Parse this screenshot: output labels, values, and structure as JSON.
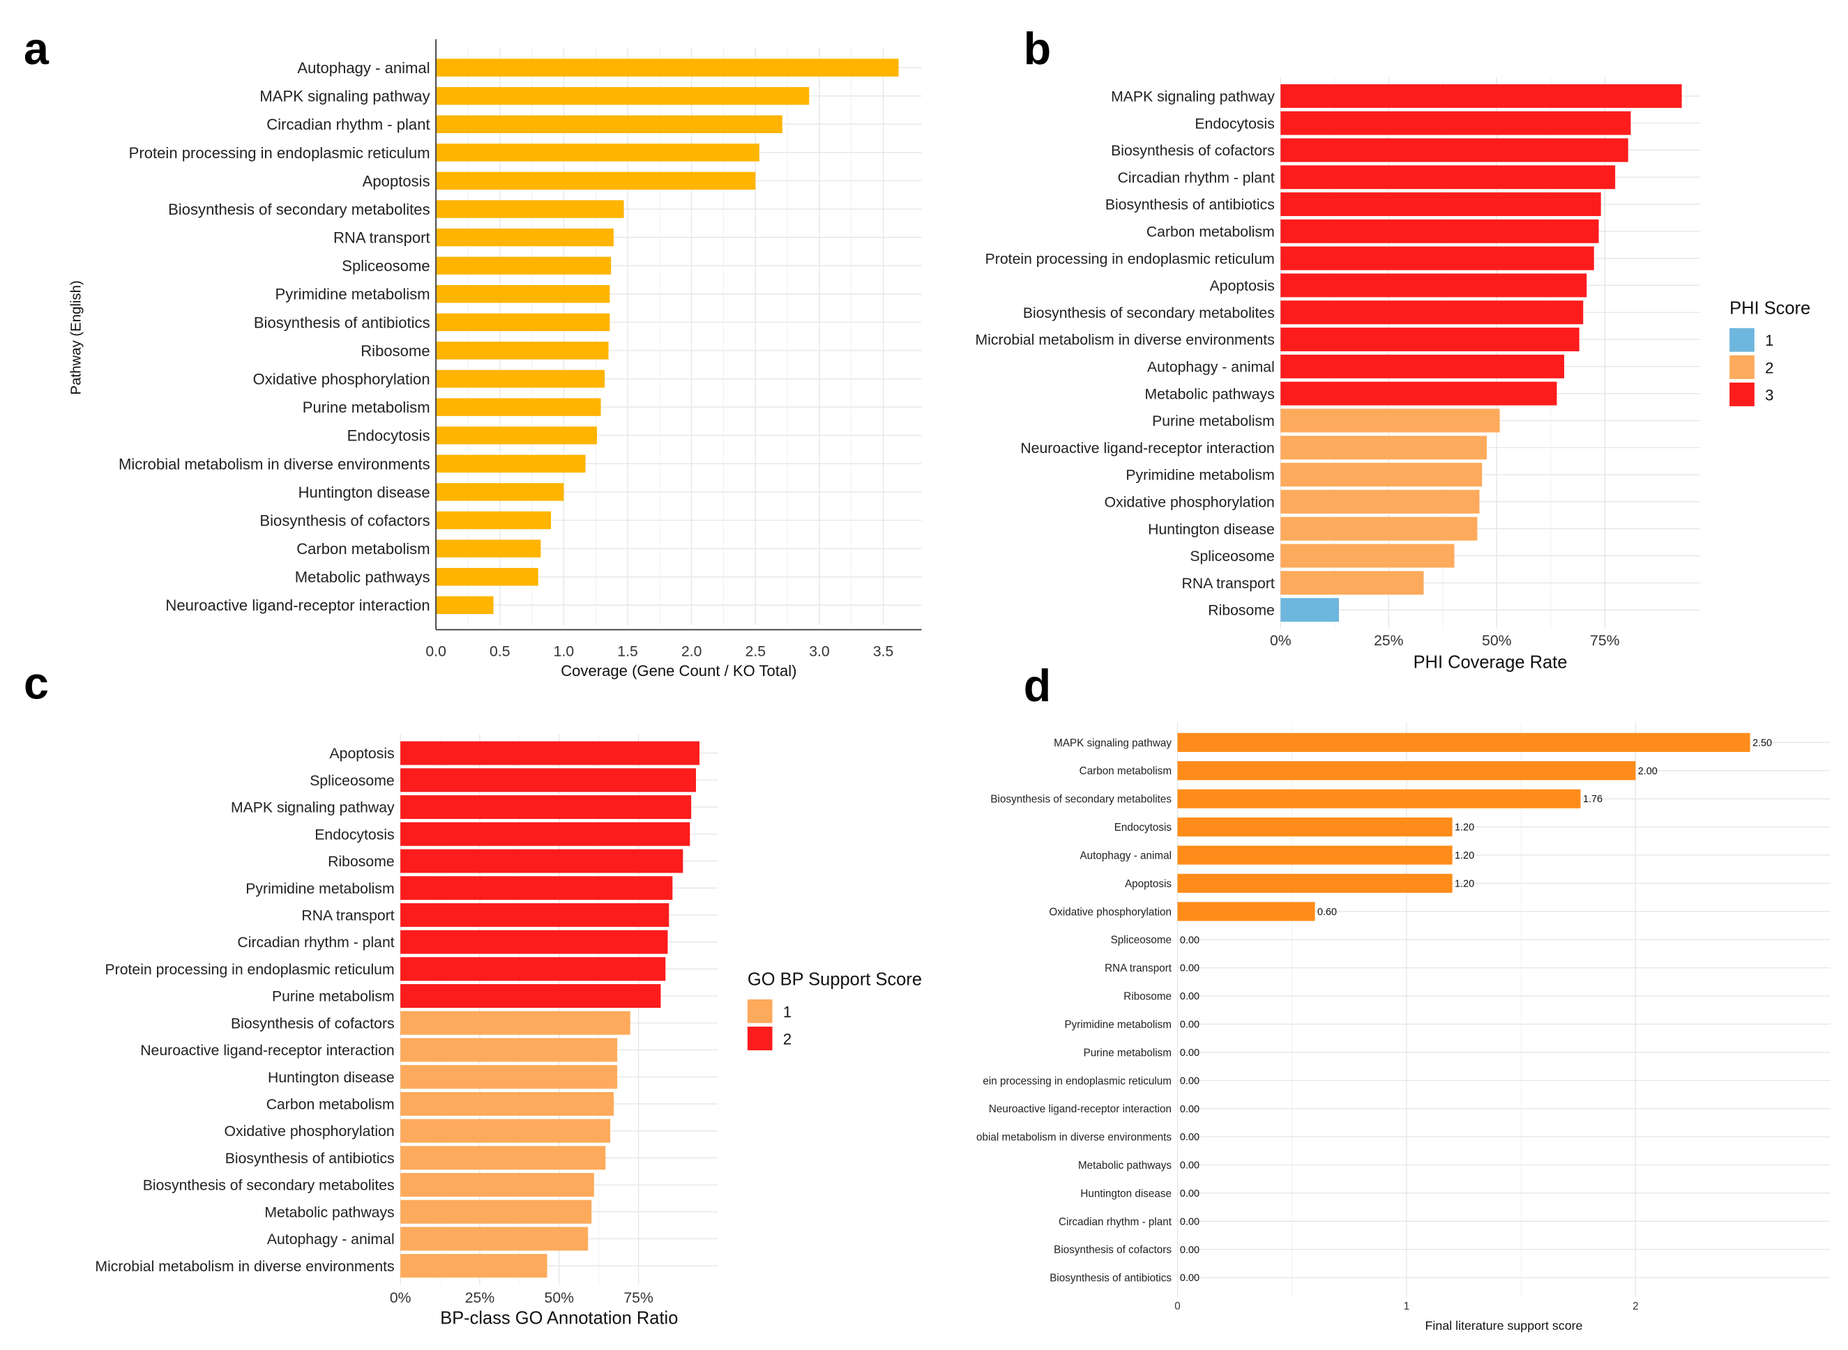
{
  "panel_letters": [
    "a",
    "b",
    "c",
    "d"
  ],
  "chart_data": [
    {
      "panel": "a",
      "type": "bar",
      "orientation": "horizontal",
      "xlabel": "Coverage (Gene Count / KO Total)",
      "ylabel": "Pathway (English)",
      "xlim": [
        0,
        3.8
      ],
      "xticks": [
        0,
        0.5,
        1,
        1.5,
        2,
        2.5,
        3,
        3.5
      ],
      "xtick_labels": [
        "0.0",
        "0.5",
        "1.0",
        "1.5",
        "2.0",
        "2.5",
        "3.0",
        "3.5"
      ],
      "bar_color": "#ffb400",
      "grid": true,
      "categories": [
        "Autophagy - animal",
        "MAPK signaling pathway",
        "Circadian rhythm - plant",
        "Protein processing in endoplasmic reticulum",
        "Apoptosis",
        "Biosynthesis of secondary metabolites",
        "RNA transport",
        "Spliceosome",
        "Pyrimidine metabolism",
        "Biosynthesis of antibiotics",
        "Ribosome",
        "Oxidative phosphorylation",
        "Purine metabolism",
        "Endocytosis",
        "Microbial metabolism in diverse environments",
        "Huntington disease",
        "Biosynthesis of cofactors",
        "Carbon metabolism",
        "Metabolic pathways",
        "Neuroactive ligand-receptor interaction"
      ],
      "values": [
        3.62,
        2.92,
        2.71,
        2.53,
        2.5,
        1.47,
        1.39,
        1.37,
        1.36,
        1.36,
        1.35,
        1.32,
        1.29,
        1.26,
        1.17,
        1.0,
        0.9,
        0.82,
        0.8,
        0.45
      ]
    },
    {
      "panel": "b",
      "type": "bar",
      "orientation": "horizontal",
      "xlabel": "PHI Coverage Rate",
      "xlim": [
        0,
        97
      ],
      "xticks": [
        0,
        25,
        50,
        75
      ],
      "xtick_labels": [
        "0%",
        "25%",
        "50%",
        "75%"
      ],
      "grid": true,
      "legend": {
        "title": "PHI Score",
        "placement": "right",
        "items": [
          {
            "label": "1",
            "color": "#6db6dd"
          },
          {
            "label": "2",
            "color": "#fdaa5c"
          },
          {
            "label": "3",
            "color": "#fc1c1c"
          }
        ]
      },
      "categories": [
        "MAPK signaling pathway",
        "Endocytosis",
        "Biosynthesis of cofactors",
        "Circadian rhythm - plant",
        "Biosynthesis of antibiotics",
        "Carbon metabolism",
        "Protein processing in endoplasmic reticulum",
        "Apoptosis",
        "Biosynthesis of secondary metabolites",
        "Microbial metabolism in diverse environments",
        "Autophagy - animal",
        "Metabolic pathways",
        "Purine metabolism",
        "Neuroactive ligand-receptor interaction",
        "Pyrimidine metabolism",
        "Oxidative phosphorylation",
        "Huntington disease",
        "Spliceosome",
        "RNA transport",
        "Ribosome"
      ],
      "values": [
        92.8,
        81.0,
        80.4,
        77.4,
        74.1,
        73.6,
        72.5,
        70.8,
        70.0,
        69.1,
        65.6,
        63.9,
        50.7,
        47.7,
        46.6,
        46.0,
        45.5,
        40.2,
        33.1,
        13.5
      ],
      "scores": [
        3,
        3,
        3,
        3,
        3,
        3,
        3,
        3,
        3,
        3,
        3,
        3,
        2,
        2,
        2,
        2,
        2,
        2,
        2,
        1
      ]
    },
    {
      "panel": "c",
      "type": "bar",
      "orientation": "horizontal",
      "xlabel": "BP-class GO Annotation Ratio",
      "xlim": [
        0,
        100
      ],
      "xticks": [
        0,
        25,
        50,
        75
      ],
      "xtick_labels": [
        "0%",
        "25%",
        "50%",
        "75%"
      ],
      "grid": true,
      "legend": {
        "title": "GO BP Support Score",
        "placement": "right",
        "items": [
          {
            "label": "1",
            "color": "#fdaa5c"
          },
          {
            "label": "2",
            "color": "#fc1c1c"
          }
        ]
      },
      "categories": [
        "Apoptosis",
        "Spliceosome",
        "MAPK signaling pathway",
        "Endocytosis",
        "Ribosome",
        "Pyrimidine metabolism",
        "RNA transport",
        "Circadian rhythm - plant",
        "Protein processing in endoplasmic reticulum",
        "Purine metabolism",
        "Biosynthesis of cofactors",
        "Neuroactive ligand-receptor interaction",
        "Huntington disease",
        "Carbon metabolism",
        "Oxidative phosphorylation",
        "Biosynthesis of antibiotics",
        "Biosynthesis of secondary metabolites",
        "Metabolic pathways",
        "Autophagy - animal",
        "Microbial metabolism in diverse environments"
      ],
      "values": [
        94.2,
        93.1,
        91.6,
        91.2,
        89.0,
        85.7,
        84.6,
        84.2,
        83.5,
        82.0,
        72.4,
        68.3,
        68.3,
        67.2,
        66.1,
        64.6,
        61.0,
        60.2,
        59.1,
        46.2
      ],
      "scores": [
        2,
        2,
        2,
        2,
        2,
        2,
        2,
        2,
        2,
        2,
        1,
        1,
        1,
        1,
        1,
        1,
        1,
        1,
        1,
        1
      ]
    },
    {
      "panel": "d",
      "type": "bar",
      "orientation": "horizontal",
      "xlabel": "Final literature support score",
      "xlim": [
        0,
        2.85
      ],
      "xticks": [
        0,
        1,
        2
      ],
      "xtick_labels": [
        "0",
        "1",
        "2"
      ],
      "bar_color": "#ff8c1a",
      "grid": true,
      "categories": [
        "MAPK signaling pathway",
        "Carbon metabolism",
        "Biosynthesis of secondary metabolites",
        "Endocytosis",
        "Autophagy - animal",
        "Apoptosis",
        "Oxidative phosphorylation",
        "Spliceosome",
        "RNA transport",
        "Ribosome",
        "Pyrimidine metabolism",
        "Purine metabolism",
        "ein processing in endoplasmic reticulum",
        "Neuroactive ligand-receptor interaction",
        "obial metabolism in diverse environments",
        "Metabolic pathways",
        "Huntington disease",
        "Circadian rhythm - plant",
        "Biosynthesis of cofactors",
        "Biosynthesis of antibiotics"
      ],
      "values": [
        2.5,
        2.0,
        1.76,
        1.2,
        1.2,
        1.2,
        0.6,
        0,
        0,
        0,
        0,
        0,
        0,
        0,
        0,
        0,
        0,
        0,
        0,
        0
      ],
      "value_labels": [
        "2.50",
        "2.00",
        "1.76",
        "1.20",
        "1.20",
        "1.20",
        "0.60",
        "0.00",
        "0.00",
        "0.00",
        "0.00",
        "0.00",
        "0.00",
        "0.00",
        "0.00",
        "0.00",
        "0.00",
        "0.00",
        "0.00",
        "0.00"
      ]
    }
  ]
}
